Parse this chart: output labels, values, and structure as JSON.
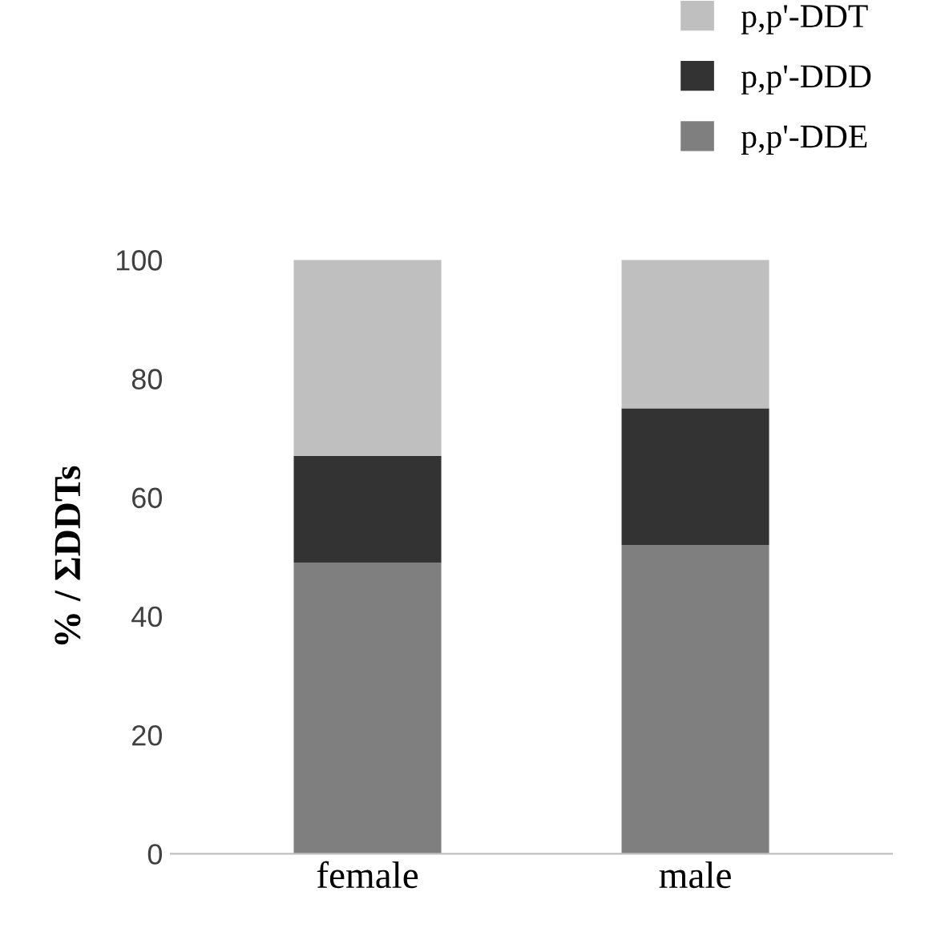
{
  "chart_data": {
    "type": "bar",
    "stacked": true,
    "ylabel": "% / ΣDDTs",
    "categories": [
      "female",
      "male"
    ],
    "series": [
      {
        "name": "p,p'-DDE",
        "color": "#7f7f7f",
        "values": [
          49,
          52
        ]
      },
      {
        "name": "p,p'-DDD",
        "color": "#333333",
        "values": [
          18,
          23
        ]
      },
      {
        "name": "p,p'-DDT",
        "color": "#bfbfbf",
        "values": [
          33,
          25
        ]
      }
    ],
    "ylim": [
      0,
      100
    ],
    "yticks": [
      0,
      20,
      40,
      60,
      80,
      100
    ],
    "legend": "top right",
    "grid": false
  }
}
